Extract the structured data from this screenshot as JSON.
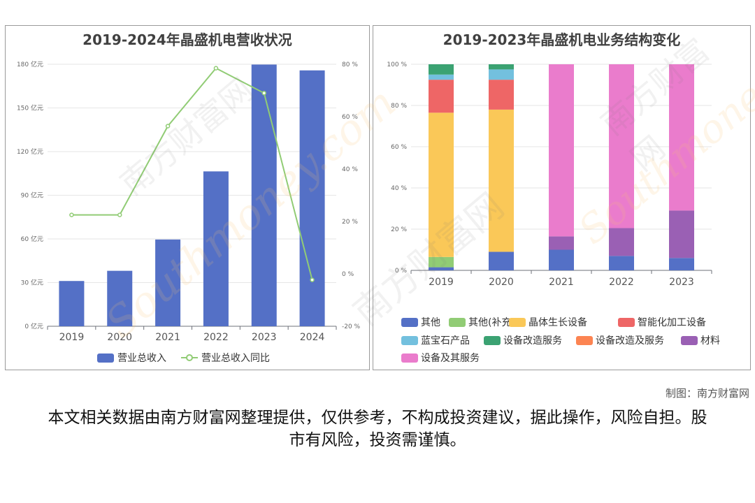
{
  "credit": "制图：南方财富网",
  "disclaimer": "本文相关数据由南方财富网整理提供，仅供参考，不构成投资建议，据此操作，风险自担。股市有风险，投资需谨慎。",
  "watermark": {
    "cn": "南方财富网",
    "en": "Southmoney.com"
  },
  "colors": {
    "bar": "#5470c6",
    "line": "#91cc75",
    "其他": "#5470c6",
    "其他(补充)": "#91cc75",
    "晶体生长设备": "#fac858",
    "智能化加工设备": "#ee6666",
    "蓝宝石产品": "#73c0de",
    "设备改造服务": "#3ba272",
    "设备改造及服务": "#fc8452",
    "材料": "#9a60b4",
    "设备及其服务": "#ea7ccc"
  },
  "chart_data": [
    {
      "type": "bar",
      "title": "2019-2024年晶盛机电营收状况",
      "categories": [
        "2019",
        "2020",
        "2021",
        "2022",
        "2023",
        "2024"
      ],
      "y_left": {
        "ticks": [
          "0 亿元",
          "30 亿元",
          "60 亿元",
          "90 亿元",
          "120 亿元",
          "150 亿元",
          "180 亿元"
        ],
        "ylim": [
          0,
          180
        ]
      },
      "y_right": {
        "ticks": [
          "-20 %",
          "0 %",
          "20 %",
          "40 %",
          "60 %",
          "80 %"
        ],
        "ylim": [
          -20,
          80
        ]
      },
      "series": [
        {
          "name": "营业总收入",
          "type": "bar",
          "axis": "left",
          "values": [
            31.1,
            38.1,
            59.6,
            106.4,
            179.8,
            175.8
          ]
        },
        {
          "name": "营业总收入同比",
          "type": "line",
          "axis": "right",
          "values": [
            22.5,
            22.5,
            56.4,
            78.5,
            69.0,
            -2.3
          ]
        }
      ],
      "legend": "bottom"
    },
    {
      "type": "bar",
      "stacked": true,
      "title": "2019-2023年晶盛机电业务结构变化",
      "categories": [
        "2019",
        "2020",
        "2021",
        "2022",
        "2023"
      ],
      "y_ticks": [
        "0 %",
        "20 %",
        "40 %",
        "60 %",
        "80 %",
        "100 %"
      ],
      "ylim": [
        0,
        100
      ],
      "series": [
        {
          "name": "其他",
          "values": [
            1.5,
            9.0,
            10.0,
            7.0,
            6.0
          ]
        },
        {
          "name": "其他(补充)",
          "values": [
            5.0,
            0,
            0,
            0,
            0
          ]
        },
        {
          "name": "晶体生长设备",
          "values": [
            70.0,
            69.0,
            0,
            0,
            0
          ]
        },
        {
          "name": "智能化加工设备",
          "values": [
            16.0,
            14.5,
            0,
            0,
            0
          ]
        },
        {
          "name": "蓝宝石产品",
          "values": [
            2.5,
            5.0,
            0,
            0,
            0
          ]
        },
        {
          "name": "设备改造服务",
          "values": [
            5.0,
            2.5,
            0,
            0,
            0
          ]
        },
        {
          "name": "设备改造及服务",
          "values": [
            0,
            0,
            0,
            0,
            0
          ]
        },
        {
          "name": "材料",
          "values": [
            0,
            0,
            6.5,
            13.5,
            23.0
          ]
        },
        {
          "name": "设备及其服务",
          "values": [
            0,
            0,
            83.5,
            79.5,
            71.0
          ]
        }
      ],
      "legend": "bottom"
    }
  ]
}
